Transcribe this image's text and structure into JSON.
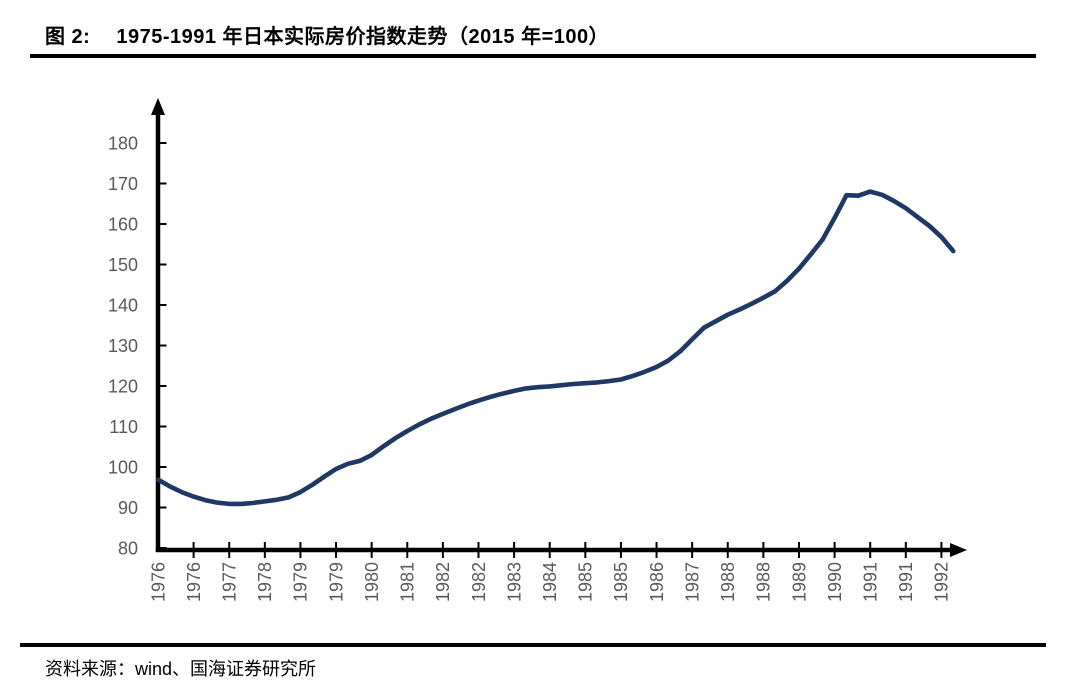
{
  "header": {
    "figure_label": "图 2:",
    "title": "1975-1991 年日本实际房价指数走势（2015 年=100）"
  },
  "footer": {
    "source": "资料来源：wind、国海证券研究所"
  },
  "chart_data": {
    "type": "line",
    "title": "1975-1991 年日本实际房价指数走势（2015 年=100）",
    "xlabel": "",
    "ylabel": "",
    "grid": false,
    "legend": false,
    "ylim": [
      80,
      180
    ],
    "y_ticks": [
      80,
      90,
      100,
      110,
      120,
      130,
      140,
      150,
      160,
      170,
      180
    ],
    "x_frequency": "quarterly",
    "x_start": "1976Q1",
    "x_end": "1992Q4",
    "points_per_tick": 3,
    "x_tick_labels": [
      "1976",
      "1976",
      "1977",
      "1978",
      "1979",
      "1979",
      "1980",
      "1981",
      "1982",
      "1982",
      "1983",
      "1984",
      "1985",
      "1985",
      "1986",
      "1987",
      "1988",
      "1988",
      "1989",
      "1990",
      "1991",
      "1991",
      "1992"
    ],
    "values": [
      96.9,
      95.2,
      93.8,
      92.7,
      91.8,
      91.2,
      90.9,
      90.9,
      91.1,
      91.5,
      91.9,
      92.5,
      93.8,
      95.6,
      97.6,
      99.5,
      100.8,
      101.5,
      103.0,
      105.1,
      107.1,
      108.9,
      110.5,
      111.9,
      113.1,
      114.3,
      115.4,
      116.4,
      117.3,
      118.1,
      118.8,
      119.4,
      119.7,
      119.9,
      120.2,
      120.5,
      120.7,
      120.9,
      121.2,
      121.6,
      122.5,
      123.5,
      124.7,
      126.3,
      128.6,
      131.5,
      134.4,
      136.0,
      137.6,
      138.9,
      140.3,
      141.8,
      143.4,
      146.0,
      149.0,
      152.5,
      156.2,
      161.5,
      167.1,
      167.0,
      168.0,
      167.2,
      165.7,
      163.9,
      161.7,
      159.5,
      156.8,
      153.3
    ],
    "line_color": "#1f3864",
    "axis_color": "#000000",
    "tick_label_color": "#595959"
  }
}
